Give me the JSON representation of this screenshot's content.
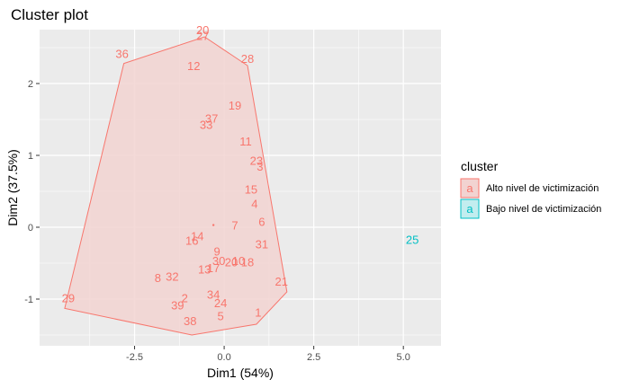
{
  "chart_data": {
    "type": "scatter",
    "title": "Cluster plot",
    "xlabel": "Dim1 (54%)",
    "ylabel": "Dim2 (37.5%)",
    "xlim": [
      -5.15,
      6.05
    ],
    "ylim": [
      -1.65,
      2.75
    ],
    "x_ticks": [
      -2.5,
      0.0,
      2.5,
      5.0
    ],
    "x_tick_labels": [
      "-2.5",
      "0.0",
      "2.5",
      "5.0"
    ],
    "y_ticks": [
      -1,
      0,
      1,
      2
    ],
    "y_tick_labels": [
      "-1",
      "0",
      "1",
      "2"
    ],
    "grid": true,
    "legend_position": "right",
    "legend_title": "cluster",
    "legend_key_glyph": "a",
    "series": [
      {
        "name": "Alto nivel de victimización",
        "color": "#F8766D",
        "fill": "#F2D3D1",
        "hull": [
          [
            -0.55,
            2.65
          ],
          [
            0.65,
            2.25
          ],
          [
            1.75,
            -0.9
          ],
          [
            0.9,
            -1.35
          ],
          [
            -0.9,
            -1.5
          ],
          [
            -4.45,
            -1.13
          ],
          [
            -2.8,
            2.28
          ]
        ],
        "points": [
          {
            "label": "20",
            "x": -0.6,
            "y": 2.75
          },
          {
            "label": "27",
            "x": -0.6,
            "y": 2.67
          },
          {
            "label": "36",
            "x": -2.85,
            "y": 2.42
          },
          {
            "label": "28",
            "x": 0.65,
            "y": 2.35
          },
          {
            "label": "12",
            "x": -0.85,
            "y": 2.25
          },
          {
            "label": "19",
            "x": 0.3,
            "y": 1.7
          },
          {
            "label": "37",
            "x": -0.35,
            "y": 1.52
          },
          {
            "label": "33",
            "x": -0.5,
            "y": 1.43
          },
          {
            "label": "11",
            "x": 0.6,
            "y": 1.2
          },
          {
            "label": "23",
            "x": 0.9,
            "y": 0.93
          },
          {
            "label": "3",
            "x": 1.0,
            "y": 0.85
          },
          {
            "label": "15",
            "x": 0.75,
            "y": 0.53
          },
          {
            "label": "4",
            "x": 0.85,
            "y": 0.33
          },
          {
            "label": "6",
            "x": 1.05,
            "y": 0.08
          },
          {
            "label": "7",
            "x": 0.3,
            "y": 0.03
          },
          {
            "label": "14",
            "x": -0.75,
            "y": -0.12
          },
          {
            "label": "16",
            "x": -0.9,
            "y": -0.18
          },
          {
            "label": "31",
            "x": 1.05,
            "y": -0.23
          },
          {
            "label": "9",
            "x": -0.2,
            "y": -0.33
          },
          {
            "label": "30",
            "x": -0.15,
            "y": -0.46
          },
          {
            "label": "20",
            "x": 0.2,
            "y": -0.48
          },
          {
            "label": "10",
            "x": 0.4,
            "y": -0.46
          },
          {
            "label": "18",
            "x": 0.65,
            "y": -0.48
          },
          {
            "label": "13",
            "x": -0.55,
            "y": -0.58
          },
          {
            "label": "17",
            "x": -0.3,
            "y": -0.56
          },
          {
            "label": "8",
            "x": -1.85,
            "y": -0.7
          },
          {
            "label": "32",
            "x": -1.45,
            "y": -0.68
          },
          {
            "label": "21",
            "x": 1.6,
            "y": -0.75
          },
          {
            "label": "34",
            "x": -0.3,
            "y": -0.93
          },
          {
            "label": "29",
            "x": -4.35,
            "y": -0.98
          },
          {
            "label": "2",
            "x": -1.1,
            "y": -0.98
          },
          {
            "label": "24",
            "x": -0.1,
            "y": -1.05
          },
          {
            "label": "39",
            "x": -1.3,
            "y": -1.08
          },
          {
            "label": "1",
            "x": 0.95,
            "y": -1.18
          },
          {
            "label": "5",
            "x": -0.1,
            "y": -1.23
          },
          {
            "label": "38",
            "x": -0.95,
            "y": -1.3
          }
        ],
        "centroid": {
          "x": -0.3,
          "y": 0.03
        }
      },
      {
        "name": "Bajo nivel de victimización",
        "color": "#00BFC4",
        "fill": "#C2EDEF",
        "points": [
          {
            "label": "25",
            "x": 5.25,
            "y": -0.17
          }
        ]
      }
    ]
  }
}
